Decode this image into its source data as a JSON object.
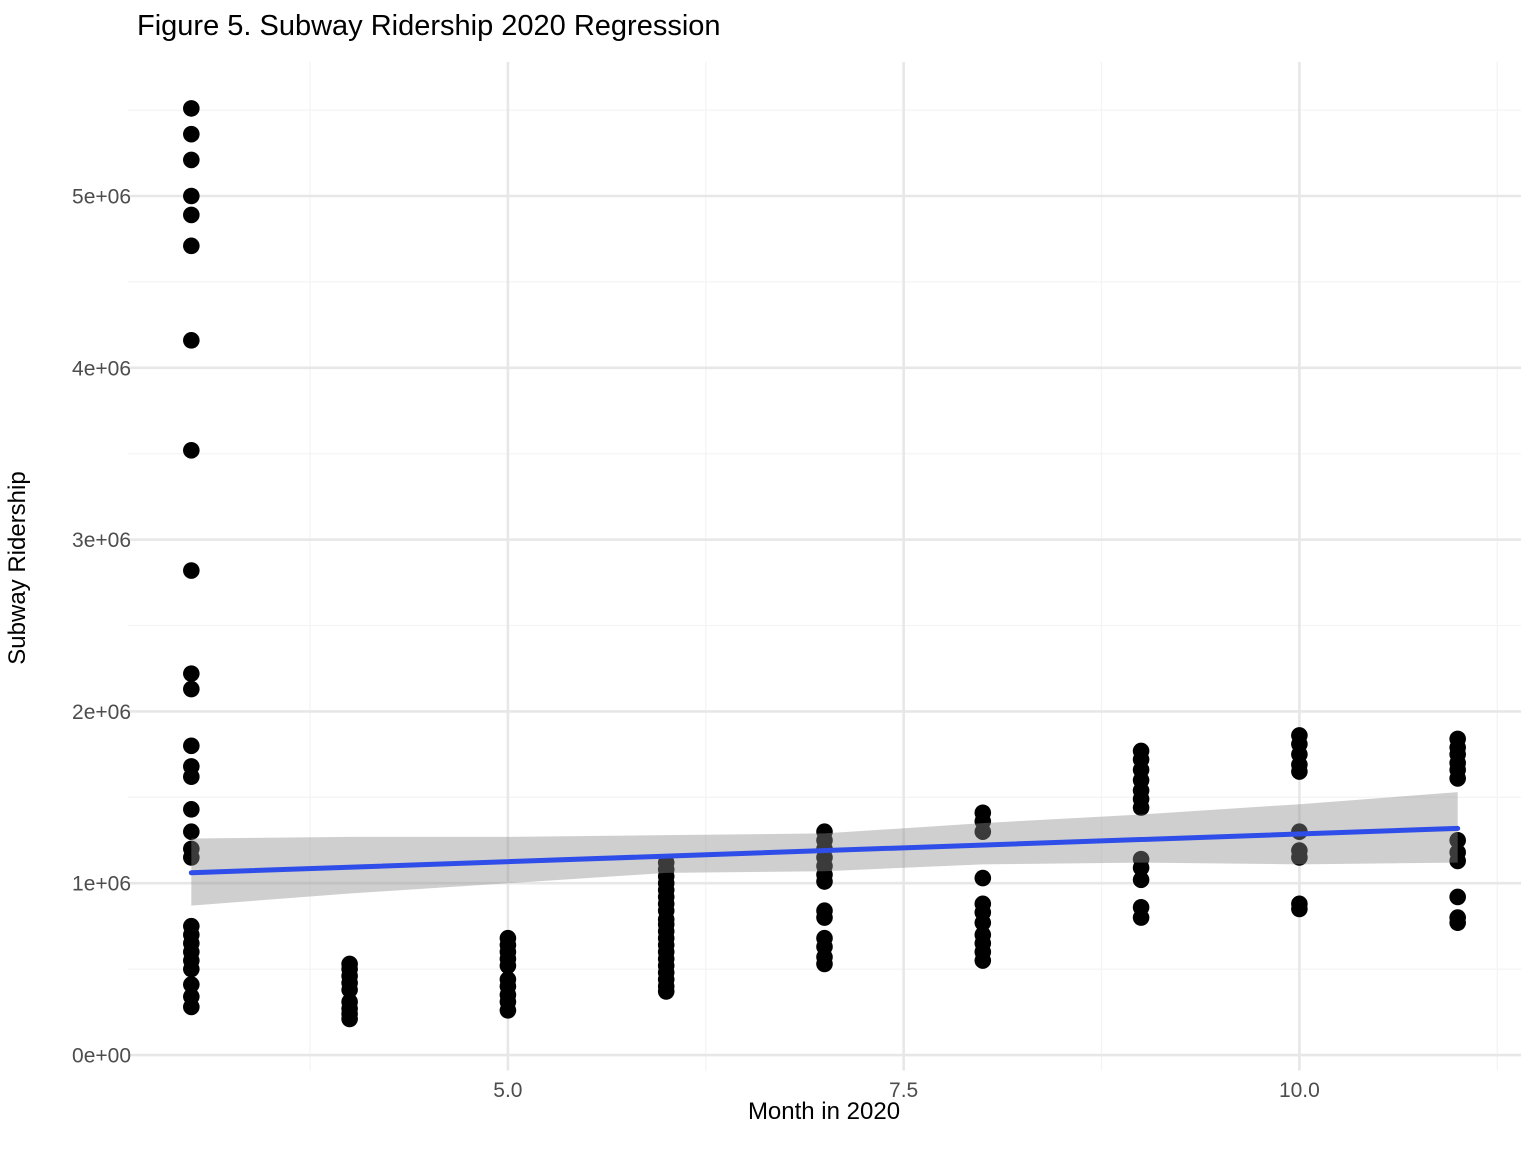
{
  "title": "Figure 5. Subway Ridership 2020 Regression",
  "chart_data": {
    "type": "scatter",
    "title": "Figure 5. Subway Ridership 2020 Regression",
    "xlabel": "Month in 2020",
    "ylabel": "Subway Ridership",
    "legend": "none",
    "grid": "on",
    "xlim": [
      2.6,
      11.4
    ],
    "ylim": [
      -90000,
      5780000
    ],
    "x_major_ticks": [
      {
        "value": 5.0,
        "label": "5.0"
      },
      {
        "value": 7.5,
        "label": "7.5"
      },
      {
        "value": 10.0,
        "label": "10.0"
      }
    ],
    "x_minor_ticks": [
      3.75,
      6.25,
      8.75,
      11.25
    ],
    "y_major_ticks": [
      {
        "value": 0,
        "label": "0e+00"
      },
      {
        "value": 1000000,
        "label": "1e+06"
      },
      {
        "value": 2000000,
        "label": "2e+06"
      },
      {
        "value": 3000000,
        "label": "3e+06"
      },
      {
        "value": 4000000,
        "label": "4e+06"
      },
      {
        "value": 5000000,
        "label": "5e+06"
      }
    ],
    "y_minor_ticks": [
      500000,
      1500000,
      2500000,
      3500000,
      4500000,
      5500000
    ],
    "colors": {
      "point": "#000000",
      "regression_line": "#2F4DE8",
      "ci_band_fill": "#8c8c8c",
      "ci_band_opacity": 0.42,
      "grid_major": "#e7e7e7",
      "grid_minor": "#f4f4f4",
      "tick_label": "#4d4d4d"
    },
    "series": [
      {
        "name": "ridership-points",
        "month": 3,
        "values": [
          5510000,
          5360000,
          5210000,
          5000000,
          4890000,
          4710000,
          4160000,
          3520000,
          2820000,
          2220000,
          2130000,
          1800000,
          1680000,
          1620000,
          1430000,
          1300000,
          1200000,
          1150000,
          750000,
          700000,
          650000,
          600000,
          550000,
          500000,
          410000,
          340000,
          280000
        ]
      },
      {
        "name": "ridership-points",
        "month": 4,
        "values": [
          530000,
          500000,
          460000,
          420000,
          380000,
          310000,
          270000,
          240000,
          210000
        ]
      },
      {
        "name": "ridership-points",
        "month": 5,
        "values": [
          680000,
          640000,
          600000,
          560000,
          520000,
          440000,
          400000,
          350000,
          310000,
          260000
        ]
      },
      {
        "name": "ridership-points",
        "month": 6,
        "values": [
          1120000,
          1080000,
          1040000,
          1000000,
          960000,
          920000,
          880000,
          840000,
          790000,
          760000,
          720000,
          680000,
          640000,
          600000,
          560000,
          520000,
          480000,
          440000,
          400000,
          370000
        ]
      },
      {
        "name": "ridership-points",
        "month": 7,
        "values": [
          1300000,
          1250000,
          1200000,
          1150000,
          1100000,
          1050000,
          1010000,
          840000,
          800000,
          680000,
          630000,
          570000,
          530000
        ]
      },
      {
        "name": "ridership-points",
        "month": 8,
        "values": [
          1410000,
          1360000,
          1300000,
          1030000,
          880000,
          830000,
          770000,
          700000,
          650000,
          600000,
          550000
        ]
      },
      {
        "name": "ridership-points",
        "month": 9,
        "values": [
          1770000,
          1720000,
          1660000,
          1600000,
          1540000,
          1490000,
          1440000,
          1140000,
          1090000,
          1020000,
          860000,
          800000
        ]
      },
      {
        "name": "ridership-points",
        "month": 10,
        "values": [
          1860000,
          1810000,
          1750000,
          1690000,
          1650000,
          1300000,
          1190000,
          1150000,
          880000,
          850000
        ]
      },
      {
        "name": "ridership-points",
        "month": 11,
        "values": [
          1840000,
          1790000,
          1750000,
          1700000,
          1660000,
          1610000,
          1250000,
          1180000,
          1130000,
          920000,
          800000,
          770000
        ]
      }
    ],
    "regression_line": {
      "x": [
        3,
        11
      ],
      "y": [
        1061000,
        1319000
      ]
    },
    "ci_band": {
      "months": [
        3,
        4,
        5,
        6,
        7,
        8,
        9,
        10,
        11
      ],
      "upper": [
        1260000,
        1270000,
        1270000,
        1280000,
        1290000,
        1350000,
        1400000,
        1460000,
        1530000
      ],
      "lower": [
        870000,
        940000,
        1000000,
        1060000,
        1070000,
        1110000,
        1120000,
        1110000,
        1120000
      ]
    }
  }
}
